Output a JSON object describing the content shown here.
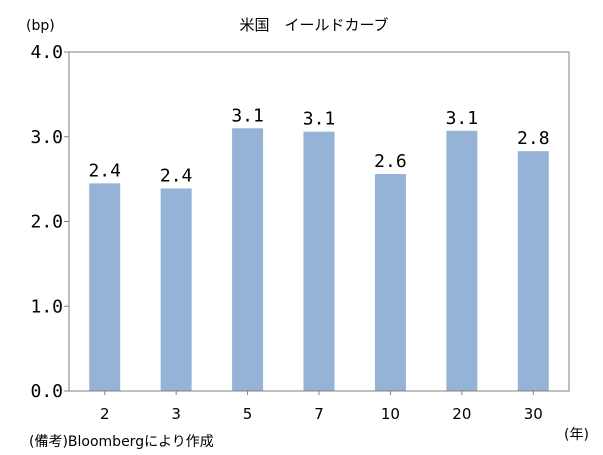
{
  "chart_data": {
    "type": "bar",
    "title": "米国　イールドカーブ",
    "ylabel": "(bp)",
    "xlabel": "(年)",
    "categories": [
      "2",
      "3",
      "5",
      "7",
      "10",
      "20",
      "30"
    ],
    "values": [
      2.45,
      2.39,
      3.1,
      3.06,
      2.56,
      3.07,
      2.83
    ],
    "data_labels": [
      "2.4",
      "2.4",
      "3.1",
      "3.1",
      "2.6",
      "3.1",
      "2.8"
    ],
    "yticks": [
      "0.0",
      "1.0",
      "2.0",
      "3.0",
      "4.0"
    ],
    "ylim": [
      0,
      4
    ],
    "bar_color": "#95b3d7",
    "grid": false,
    "legend": "none"
  },
  "note": "(備考)Bloombergにより作成"
}
